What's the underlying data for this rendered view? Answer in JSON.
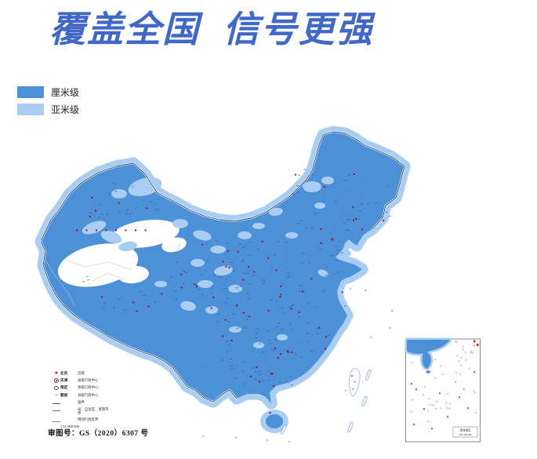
{
  "title": "覆盖全国  信号更强",
  "coverage_legend": {
    "items": [
      {
        "label": "厘米级",
        "color": "#4C90D7"
      },
      {
        "label": "亚米级",
        "color": "#AACDF3"
      }
    ]
  },
  "map_legend": {
    "rows": [
      {
        "symbol": "capital-star",
        "name": "北京",
        "desc": "首都"
      },
      {
        "symbol": "double-circle",
        "name": "天津",
        "desc": "省级行政中心"
      },
      {
        "symbol": "circle",
        "name": "保定",
        "desc": "地级行政中心"
      },
      {
        "symbol": "dot",
        "name": "蓟县",
        "desc": "县级行政中心"
      },
      {
        "symbol": "boundary-national",
        "name": "",
        "desc": "国界"
      },
      {
        "symbol": "boundary-province",
        "name": "",
        "desc": "省、自治区、直辖市界"
      },
      {
        "symbol": "boundary-sar",
        "name": "",
        "desc": "特别行政区界"
      }
    ],
    "scale_text": "1∶11 000 000"
  },
  "approval_text": "审图号：GS（2020）6307 号",
  "inset": {
    "title": "南海诸岛",
    "scale": "1∶31 000 000"
  },
  "colors": {
    "headline_blue": "#4168C7",
    "coverage_cm_blue": "#4C90D7",
    "coverage_submeter_blue": "#AACDF3",
    "national_border_navy": "#20406E",
    "city_dot_red": "#9B1010",
    "island_label_pink": "#E560A8"
  }
}
